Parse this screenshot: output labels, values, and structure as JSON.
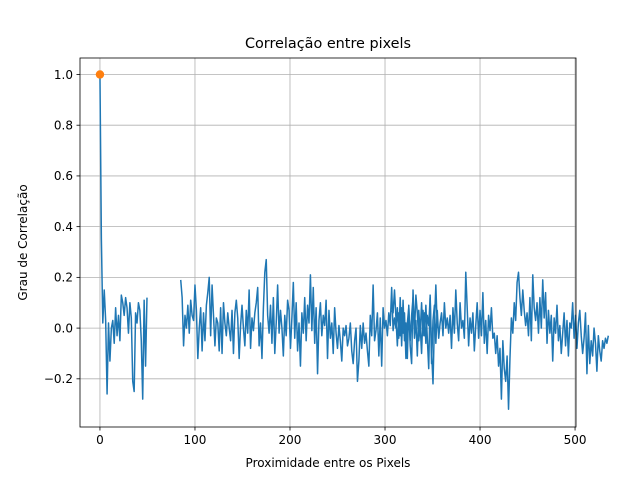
{
  "chart_data": {
    "type": "line",
    "title": "Correlação entre pixels",
    "xlabel": "Proximidade entre os Pixels",
    "ylabel": "Grau de Correlação",
    "xlim": [
      -21,
      501
    ],
    "ylim": [
      -0.39,
      1.065
    ],
    "xticks": [
      0,
      100,
      200,
      300,
      400,
      500
    ],
    "xtick_labels": [
      "0",
      "100",
      "200",
      "300",
      "400",
      "500"
    ],
    "yticks": [
      -0.2,
      0.0,
      0.2,
      0.4,
      0.6,
      0.8,
      1.0
    ],
    "ytick_labels": [
      "−0.2",
      "0.0",
      "0.2",
      "0.4",
      "0.6",
      "0.8",
      "1.0"
    ],
    "grid": true,
    "series": [
      {
        "color": "#1f77b4",
        "segments": [
          {
            "x_start": 0,
            "values": [
              1.0,
              0.35,
              0.02,
              0.15,
              0.03,
              -0.26,
              0.02,
              -0.13,
              0.0,
              0.03,
              -0.06,
              0.08,
              -0.03,
              0.05,
              -0.05,
              0.13,
              0.1,
              0.05,
              0.12,
              0.08,
              -0.02,
              0.1,
              0.04,
              -0.21,
              -0.25,
              0.06,
              0.02,
              0.1,
              0.07,
              -0.05,
              -0.28,
              0.11,
              -0.15,
              0.12
            ]
          },
          {
            "x_start": 85,
            "values": [
              0.19,
              0.12,
              -0.07,
              0.05,
              0.0,
              0.09,
              -0.02,
              0.11,
              0.05,
              0.03,
              0.17,
              0.07,
              -0.12,
              0.0,
              0.08,
              -0.09,
              0.06,
              -0.05,
              0.09,
              0.14,
              0.2,
              -0.03,
              0.17,
              0.05,
              -0.07,
              0.04,
              0.02,
              -0.09,
              0.08,
              -0.1,
              0.1,
              0.02,
              -0.03,
              0.06,
              0.0,
              -0.05,
              0.07,
              -0.1,
              0.06,
              0.11,
              0.04,
              -0.12,
              0.01,
              0.09,
              0.0,
              -0.07,
              0.07,
              -0.02,
              0.15,
              -0.08,
              0.04,
              -0.01,
              0.06,
              0.1,
              0.16,
              -0.07,
              0.02,
              -0.12,
              0.08,
              0.22,
              0.27,
              0.05,
              -0.02,
              0.09,
              -0.06,
              0.12,
              -0.1,
              0.02,
              0.17,
              -0.02,
              0.07,
              0.0,
              -0.11,
              0.05,
              -0.03,
              0.11,
              0.07,
              -0.08,
              0.04,
              0.18,
              -0.04,
              0.1,
              -0.09,
              0.02,
              -0.15,
              0.06,
              -0.02,
              0.12,
              -0.05,
              0.09,
              0.02,
              0.21,
              -0.01,
              0.16,
              -0.06,
              0.08,
              -0.18,
              0.03,
              0.1,
              -0.03,
              0.05,
              0.01,
              0.11,
              -0.12,
              0.07,
              -0.04,
              0.02,
              -0.1,
              0.08,
              -0.02,
              -0.08,
              0.01,
              -0.05,
              -0.13,
              0.0,
              -0.03,
              0.01,
              -0.07,
              -0.04,
              0.02,
              -0.09,
              -0.14,
              -0.05,
              0.0,
              -0.21,
              -0.13,
              0.01,
              -0.08,
              0.02,
              -0.06,
              -0.02,
              -0.09,
              -0.15,
              0.05,
              -0.03,
              0.17,
              -0.05,
              -0.01,
              0.06,
              -0.11,
              0.04,
              -0.15,
              0.08,
              0.0,
              0.03,
              -0.03,
              0.06,
              0.01,
              0.16,
              -0.01,
              0.04,
              0.0,
              0.08,
              -0.04,
              0.12,
              -0.07,
              0.11,
              -0.05,
              0.02,
              -0.12,
              0.09,
              -0.07,
              -0.14,
              0.15,
              -0.02,
              0.13,
              0.06,
              -0.05,
              0.01,
              -0.1,
              0.07,
              -0.03,
              0.09,
              -0.04,
              -0.16,
              0.13,
              -0.09,
              -0.22,
              0.02,
              0.17,
              0.0
            ]
          },
          {
            "x_start": 307,
            "values": [
              0.07,
              0.06,
              0.15,
              0.04,
              -0.07,
              0.06,
              -0.03,
              0.08,
              -0.02,
              0.06,
              -0.12,
              0.02,
              0.08,
              -0.05,
              0.05,
              0.12,
              -0.04,
              0.03,
              -0.11,
              0.07,
              -0.02,
              0.1,
              -0.03,
              0.06,
              -0.06,
              0.05,
              0.01,
              0.12,
              -0.14,
              0.03,
              0.09,
              -0.06,
              0.07,
              -0.04,
              0.02,
              0.06,
              -0.03,
              0.1,
              0.0,
              0.04,
              -0.02,
              0.05,
              -0.08,
              0.08,
              -0.02,
              0.15,
              0.02,
              -0.05,
              0.1,
              0.0,
              0.03,
              -0.04,
              0.22,
              0.08,
              -0.07,
              0.04,
              -0.02,
              0.06,
              -0.09,
              0.01,
              0.1,
              -0.04,
              0.07,
              -0.03,
              0.14,
              -0.06,
              0.03,
              -0.1,
              0.05,
              -0.01,
              0.08,
              -0.04,
              -0.02,
              -0.1,
              -0.03,
              -0.15,
              -0.08,
              -0.28,
              -0.05,
              -0.16,
              -0.21,
              -0.11,
              -0.32,
              -0.12,
              0.04,
              -0.02,
              0.1,
              0.03,
              0.18,
              0.22,
              0.12,
              0.05,
              0.15,
              0.07,
              0.01,
              0.06,
              -0.03,
              0.12,
              -0.05,
              0.21,
              0.08,
              0.03,
              0.1,
              -0.02,
              0.12,
              0.0,
              0.19,
              0.04,
              0.14,
              -0.06,
              0.07,
              -0.02,
              0.05,
              -0.13,
              0.04,
              -0.02,
              0.09,
              -0.05,
              0.01,
              -0.1,
              -0.02,
              0.06,
              -0.07,
              0.03,
              -0.11,
              0.02,
              0.0,
              0.1,
              -0.04,
              0.05,
              -0.08,
              0.02,
              0.07,
              -0.03,
              -0.1,
              -0.04,
              0.06,
              -0.18,
              0.01,
              -0.14,
              -0.05,
              -0.11,
              0.0,
              -0.06,
              -0.17,
              -0.03,
              -0.09,
              -0.13,
              -0.05,
              -0.08,
              -0.04,
              -0.06,
              -0.03
            ]
          }
        ]
      }
    ],
    "highlight_point": {
      "x": 0,
      "y": 1.0,
      "color": "#ff7f0e"
    }
  }
}
